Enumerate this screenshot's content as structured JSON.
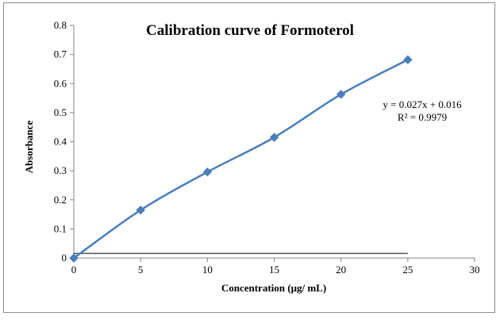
{
  "chart_data": {
    "type": "line",
    "title": "Calibration curve of Formoterol",
    "xlabel": "Concentration (μg/ mL)",
    "ylabel": "Absorbance",
    "xlim": [
      0,
      30
    ],
    "ylim": [
      0,
      0.8
    ],
    "xticks": [
      "0",
      "5",
      "10",
      "15",
      "20",
      "25",
      "30"
    ],
    "yticks": [
      "0",
      "0.1",
      "0.2",
      "0.3",
      "0.4",
      "0.5",
      "0.6",
      "0.7",
      "0.8"
    ],
    "grid": false,
    "legend": "none",
    "series": [
      {
        "x": [
          0,
          5,
          10,
          15,
          20,
          25
        ],
        "values": [
          0,
          0.165,
          0.296,
          0.415,
          0.563,
          0.682
        ],
        "color": "#4a7ebb",
        "marker": "diamond"
      }
    ],
    "annotations": {
      "equation": "y = 0.027x + 0.016",
      "r_squared": "R² = 0.9979"
    },
    "baseline_color": "#000000"
  }
}
